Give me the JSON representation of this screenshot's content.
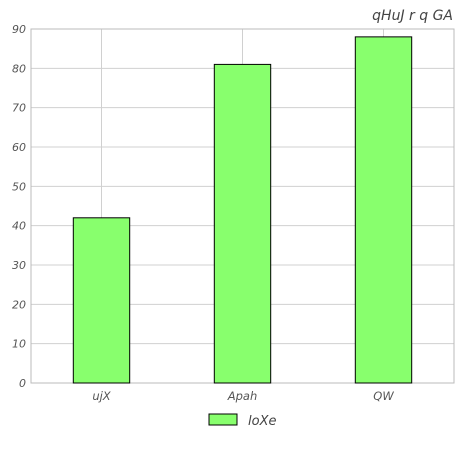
{
  "chart_data": {
    "type": "bar",
    "title": "qHuJ r q GA",
    "xlabel": "",
    "ylabel": "",
    "categories": [
      "ujX",
      "Apah",
      "QW"
    ],
    "series": [
      {
        "name": "loXe",
        "values": [
          42,
          81,
          88
        ],
        "color": "#88ff6d"
      }
    ],
    "ylim": [
      0,
      90
    ],
    "yticks": [
      0,
      10,
      20,
      30,
      40,
      50,
      60,
      70,
      80,
      90
    ],
    "grid": true,
    "legend_position": "bottom-center"
  }
}
